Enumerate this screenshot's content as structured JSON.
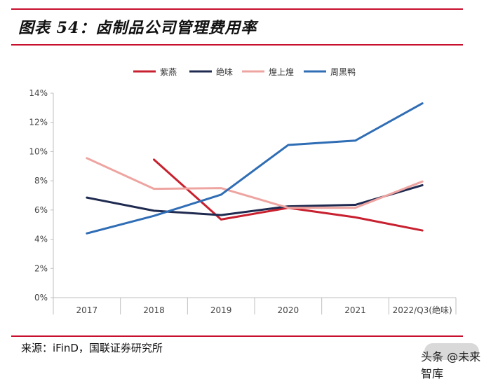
{
  "title": "图表 54：卤制品公司管理费用率",
  "source": "来源：iFinD，国联证券研究所",
  "watermark": "头条 @未来智库",
  "chart_data": {
    "type": "line",
    "categories": [
      "2017",
      "2018",
      "2019",
      "2020",
      "2021",
      "2022/Q3(绝味)"
    ],
    "ylim": [
      0,
      14
    ],
    "yticks": [
      "0%",
      "2%",
      "4%",
      "6%",
      "8%",
      "10%",
      "12%",
      "14%"
    ],
    "ytick_values": [
      0,
      2,
      4,
      6,
      8,
      10,
      12,
      14
    ],
    "grid": false,
    "legend_position": "top",
    "series": [
      {
        "name": "紫燕",
        "color": "#c8202f",
        "values": [
          null,
          9.45,
          5.35,
          6.15,
          5.5,
          4.6
        ]
      },
      {
        "name": "绝味",
        "color": "#1f2a50",
        "values": [
          6.85,
          5.95,
          5.65,
          6.25,
          6.35,
          7.7
        ]
      },
      {
        "name": "煌上煌",
        "color": "#eea4a0",
        "values": [
          9.55,
          7.45,
          7.5,
          6.15,
          6.15,
          7.95
        ]
      },
      {
        "name": "周黑鸭",
        "color": "#2f6db5",
        "values": [
          4.4,
          5.6,
          7.05,
          10.45,
          10.75,
          13.3
        ]
      }
    ]
  }
}
